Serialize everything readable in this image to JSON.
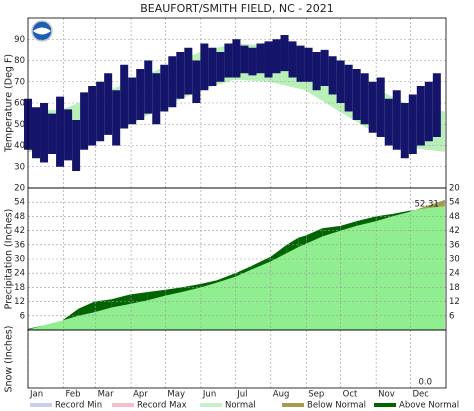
{
  "chart_data": {
    "type": "climate",
    "title": "BEAUFORT/SMITH FIELD, NC - 2021",
    "xlim": [
      1,
      366
    ],
    "xticks": [
      {
        "value": 1,
        "label": "Jan"
      },
      {
        "value": 32,
        "label": "Feb"
      },
      {
        "value": 60,
        "label": "Mar"
      },
      {
        "value": 91,
        "label": "Apr"
      },
      {
        "value": 121,
        "label": "May"
      },
      {
        "value": 152,
        "label": "Jun"
      },
      {
        "value": 182,
        "label": "Jul"
      },
      {
        "value": 213,
        "label": "Aug"
      },
      {
        "value": 244,
        "label": "Sep"
      },
      {
        "value": 274,
        "label": "Oct"
      },
      {
        "value": 305,
        "label": "Nov"
      },
      {
        "value": 335,
        "label": "Dec"
      }
    ],
    "temperature": {
      "ylabel": "Temperature (Deg F)",
      "ylim": [
        20,
        100
      ],
      "yticks": [
        20,
        30,
        40,
        50,
        60,
        70,
        80,
        90
      ],
      "color": "#14146b",
      "normal_color": "#b8f0b8",
      "x": [
        1,
        8,
        15,
        22,
        29,
        36,
        43,
        50,
        57,
        64,
        71,
        78,
        85,
        92,
        99,
        106,
        113,
        120,
        127,
        134,
        141,
        148,
        155,
        162,
        169,
        176,
        183,
        190,
        197,
        204,
        211,
        218,
        225,
        232,
        239,
        246,
        253,
        260,
        267,
        274,
        281,
        288,
        295,
        302,
        309,
        316,
        323,
        330,
        337,
        344,
        351,
        358
      ],
      "high": [
        62,
        58,
        60,
        55,
        63,
        57,
        52,
        65,
        68,
        70,
        74,
        66,
        78,
        72,
        76,
        80,
        74,
        78,
        82,
        84,
        86,
        80,
        88,
        86,
        84,
        88,
        90,
        87,
        86,
        88,
        89,
        90,
        92,
        89,
        87,
        86,
        84,
        85,
        82,
        80,
        78,
        76,
        74,
        70,
        72,
        62,
        66,
        60,
        64,
        68,
        70,
        74
      ],
      "low": [
        38,
        34,
        32,
        36,
        30,
        33,
        28,
        38,
        40,
        42,
        45,
        40,
        48,
        50,
        52,
        55,
        50,
        56,
        58,
        62,
        64,
        60,
        66,
        68,
        70,
        72,
        72,
        74,
        73,
        74,
        72,
        74,
        75,
        72,
        70,
        70,
        66,
        68,
        64,
        60,
        56,
        52,
        50,
        46,
        44,
        40,
        38,
        34,
        36,
        40,
        42,
        44
      ],
      "normal_x": [
        1,
        31,
        59,
        90,
        120,
        151,
        181,
        212,
        243,
        273,
        304,
        334,
        365
      ],
      "normal_high": [
        56,
        57,
        63,
        70,
        77,
        84,
        88,
        87,
        83,
        75,
        67,
        59,
        56
      ],
      "normal_low": [
        37,
        38,
        43,
        50,
        58,
        66,
        71,
        70,
        66,
        56,
        46,
        39,
        37
      ]
    },
    "precipitation": {
      "ylabel": "Precipitation (Inches)",
      "ylim": [
        0,
        60
      ],
      "yticks": [
        6,
        12,
        18,
        24,
        30,
        36,
        42,
        48,
        54
      ],
      "normal_color": "#90ee90",
      "above_color": "#006400",
      "below_color": "#a89a50",
      "x": [
        1,
        15,
        31,
        45,
        59,
        74,
        90,
        105,
        121,
        135,
        152,
        166,
        182,
        196,
        213,
        227,
        237,
        244,
        258,
        274,
        288,
        305,
        319,
        335,
        350,
        365
      ],
      "actual": [
        0.5,
        2,
        4,
        9,
        12,
        13,
        15,
        16,
        17,
        18,
        19.5,
        21,
        24,
        27,
        31,
        36,
        39,
        40,
        43,
        44,
        46,
        48,
        49,
        50.5,
        51.5,
        52.31
      ],
      "normal": [
        0.1,
        2,
        4,
        6,
        7.5,
        9.5,
        11,
        12.5,
        14.5,
        16,
        18,
        20,
        22.5,
        25.5,
        29,
        32.5,
        35,
        36.5,
        39.5,
        42,
        44,
        46,
        48,
        50,
        52.5,
        55
      ],
      "annotation": 52.31
    },
    "snow": {
      "ylabel": "Snow (Inches)",
      "total": {
        "value": 0,
        "label": "0.0"
      }
    },
    "legend": [
      {
        "name": "Record Min",
        "color": "#c8d0f0"
      },
      {
        "name": "Record Max",
        "color": "#f4c0c8"
      },
      {
        "name": "Normal",
        "color": "#c8f0c8"
      },
      {
        "name": "Below Normal",
        "color": "#a89a50"
      },
      {
        "name": "Above Normal",
        "color": "#006400"
      }
    ]
  }
}
